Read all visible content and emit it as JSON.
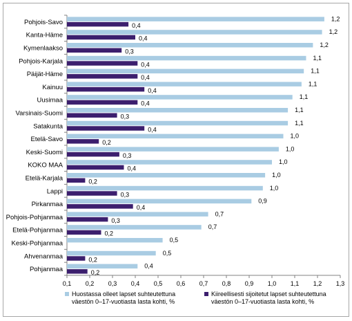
{
  "chart_data": {
    "type": "bar",
    "orientation": "horizontal",
    "categories": [
      "Pohjois-Savo",
      "Kanta-Häme",
      "Kymenlaakso",
      "Pohjois-Karjala",
      "Päijät-Häme",
      "Kainuu",
      "Uusimaa",
      "Varsinais-Suomi",
      "Satakunta",
      "Etelä-Savo",
      "Keski-Suomi",
      "KOKO MAA",
      "Etelä-Karjala",
      "Lappi",
      "Pirkanmaa",
      "Pohjois-Pohjanmaa",
      "Etelä-Pohjanmaa",
      "Keski-Pohjanmaa",
      "Ahvenanmaa",
      "Pohjanmaa"
    ],
    "series": [
      {
        "name": "Huostassa olleet lapset suhteutettuna väestön 0–17-vuotiasta lasta kohti, %",
        "color": "#a9cce3",
        "values": [
          1.23,
          1.22,
          1.18,
          1.15,
          1.14,
          1.13,
          1.09,
          1.07,
          1.07,
          1.05,
          1.03,
          1.0,
          0.97,
          0.96,
          0.91,
          0.72,
          0.69,
          0.52,
          0.49,
          0.41
        ],
        "labels": [
          "1,2",
          "1,2",
          "1,2",
          "1,1",
          "1,1",
          "1,1",
          "1,1",
          "1,1",
          "1,1",
          "1,0",
          "1,0",
          "1,0",
          "1,0",
          "1,0",
          "0,9",
          "0,7",
          "0,7",
          "0,5",
          "0,5",
          "0,4"
        ]
      },
      {
        "name": "Kiireellisesti sijoitetut lapset suhteutettuna väestön 0–17-vuotiasta lasta kohti, %",
        "color": "#3c1f6e",
        "values": [
          0.37,
          0.4,
          0.34,
          0.41,
          0.41,
          0.44,
          0.41,
          0.32,
          0.44,
          0.24,
          0.33,
          0.35,
          0.18,
          0.32,
          0.39,
          0.28,
          0.25,
          null,
          0.18,
          0.19
        ],
        "labels": [
          "0,4",
          "0,4",
          "0,3",
          "0,4",
          "0,4",
          "0,4",
          "0,4",
          "0,3",
          "0,4",
          "0,2",
          "0,3",
          "0,4",
          "0,2",
          "0,3",
          "0,4",
          "0,3",
          "0,2",
          "",
          "0,2",
          "0,2"
        ]
      }
    ],
    "xlim": [
      0.1,
      1.3
    ],
    "xticks": [
      "0,1",
      "0,2",
      "0,3",
      "0,4",
      "0,5",
      "0,6",
      "0,7",
      "0,8",
      "0,9",
      "1,0",
      "1,1",
      "1,2",
      "1,3"
    ],
    "legend": {
      "placement": "bottom",
      "items": [
        {
          "line1": "Huostassa olleet lapset suhteutettuna",
          "line2": "väestön  0–17-vuotiasta lasta kohti, %",
          "color": "#a9cce3"
        },
        {
          "line1": "Kiireellisesti sijoitetut lapset suhteutettuna",
          "line2": "väestön  0–17-vuotiasta lasta kohti, %",
          "color": "#3c1f6e"
        }
      ]
    },
    "grid": false,
    "title": "",
    "xlabel": "",
    "ylabel": ""
  }
}
